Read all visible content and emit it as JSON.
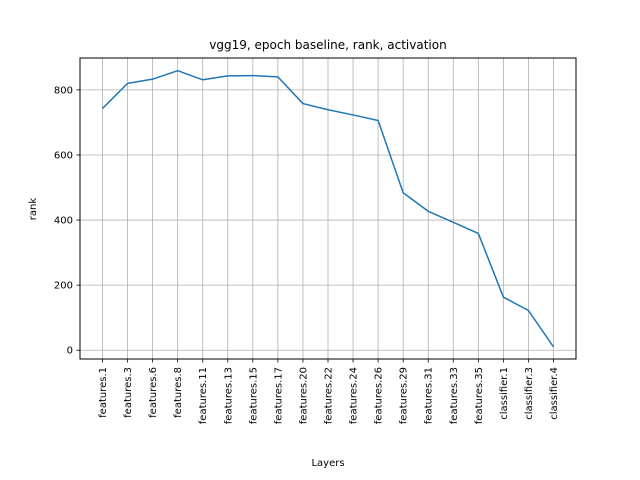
{
  "chart_data": {
    "type": "line",
    "title": "vgg19, epoch baseline, rank, activation",
    "xlabel": "Layers",
    "ylabel": "rank",
    "categories": [
      "features.1",
      "features.3",
      "features.6",
      "features.8",
      "features.11",
      "features.13",
      "features.15",
      "features.17",
      "features.20",
      "features.22",
      "features.24",
      "features.26",
      "features.29",
      "features.31",
      "features.33",
      "features.35",
      "classifier.1",
      "classifier.3",
      "classifier.4"
    ],
    "series": [
      {
        "values": [
          743,
          820,
          833,
          859,
          831,
          843,
          844,
          840,
          758,
          739,
          723,
          706,
          484,
          427,
          393,
          359,
          163,
          122,
          10
        ],
        "color": "#1f77b4"
      }
    ],
    "ylim": [
      -27,
      898
    ],
    "yticks": [
      0,
      200,
      400,
      600,
      800
    ],
    "grid": true,
    "legend": "none"
  }
}
